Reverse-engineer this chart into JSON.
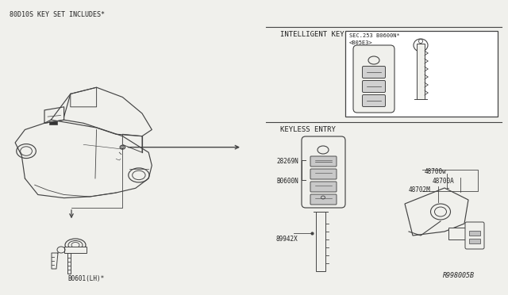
{
  "bg_color": "#f0f0ec",
  "title_text": "80D10S KEY SET INCLUDES*",
  "intelligent_key_label": "INTELLIGENT KEY",
  "keyless_entry_label": "KEYLESS ENTRY",
  "ik_ref1": "SEC.253 B0600N*",
  "ik_ref2": "<B05E3>",
  "ke_label1": "28269N",
  "ke_label2": "B0600N",
  "ke_label3": "89942X",
  "cylinder_label": "B0601(LH)*",
  "right_label1": "48700w",
  "right_label2": "48700A",
  "right_label3": "48702M",
  "diagram_ref": "R998005B",
  "line_color": "#444444",
  "text_color": "#222222",
  "box_color": "#dddddd",
  "white": "#ffffff"
}
